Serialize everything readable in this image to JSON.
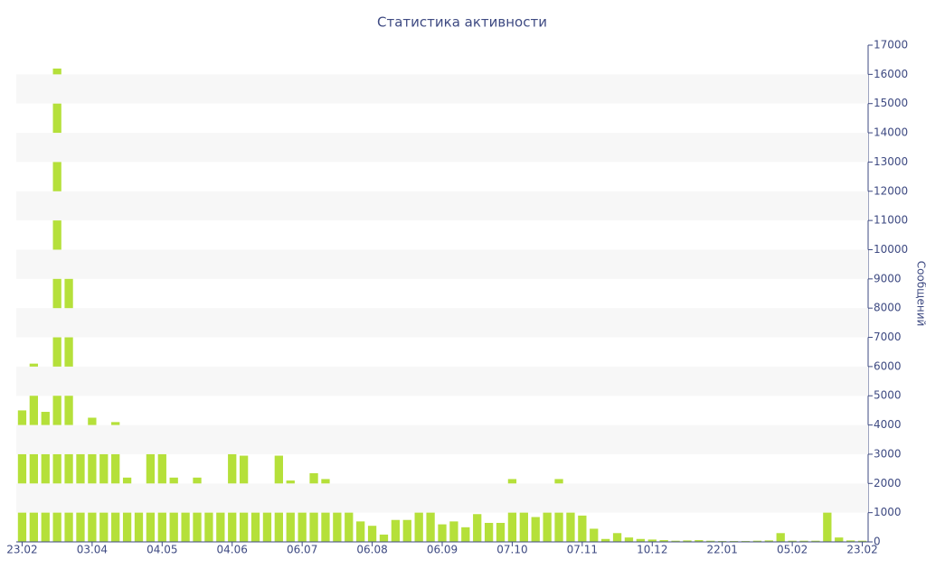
{
  "chart_data": {
    "type": "bar",
    "title": "Статистика активности",
    "y_label": "Сообщений",
    "y_axis_side": "right",
    "color": "#b5e03a",
    "grid": "bands",
    "categories": [
      "23.02",
      null,
      null,
      null,
      null,
      null,
      "03.04",
      null,
      null,
      null,
      null,
      null,
      "04.05",
      null,
      null,
      null,
      null,
      null,
      "04.06",
      null,
      null,
      null,
      null,
      null,
      "06.07",
      null,
      null,
      null,
      null,
      null,
      "06.08",
      null,
      null,
      null,
      null,
      null,
      "06.09",
      null,
      null,
      null,
      null,
      null,
      "07.10",
      null,
      null,
      null,
      null,
      null,
      "07.11",
      null,
      null,
      null,
      null,
      null,
      "10.12",
      null,
      null,
      null,
      null,
      null,
      "22.01",
      null,
      null,
      null,
      null,
      null,
      "05.02",
      null,
      null,
      null,
      null,
      null,
      "23.02"
    ],
    "values": [
      4500,
      6100,
      4450,
      16200,
      9450,
      3450,
      4250,
      3750,
      4100,
      2200,
      1150,
      3900,
      3350,
      2200,
      1350,
      2200,
      1350,
      1700,
      3100,
      2950,
      1750,
      1900,
      2950,
      2100,
      1300,
      2350,
      2150,
      1150,
      1250,
      700,
      550,
      250,
      750,
      750,
      1800,
      1150,
      600,
      700,
      500,
      950,
      650,
      650,
      2150,
      1750,
      850,
      1350,
      2150,
      1150,
      900,
      450,
      100,
      300,
      150,
      100,
      80,
      60,
      40,
      50,
      60,
      40,
      30,
      30,
      30,
      40,
      50,
      300,
      40,
      40,
      40,
      1550,
      150,
      50,
      40
    ],
    "ylim": [
      0,
      17000
    ],
    "yticks": [
      0,
      1000,
      2000,
      3000,
      4000,
      5000,
      6000,
      7000,
      8000,
      9000,
      10000,
      11000,
      12000,
      13000,
      14000,
      15000,
      16000,
      17000
    ]
  }
}
